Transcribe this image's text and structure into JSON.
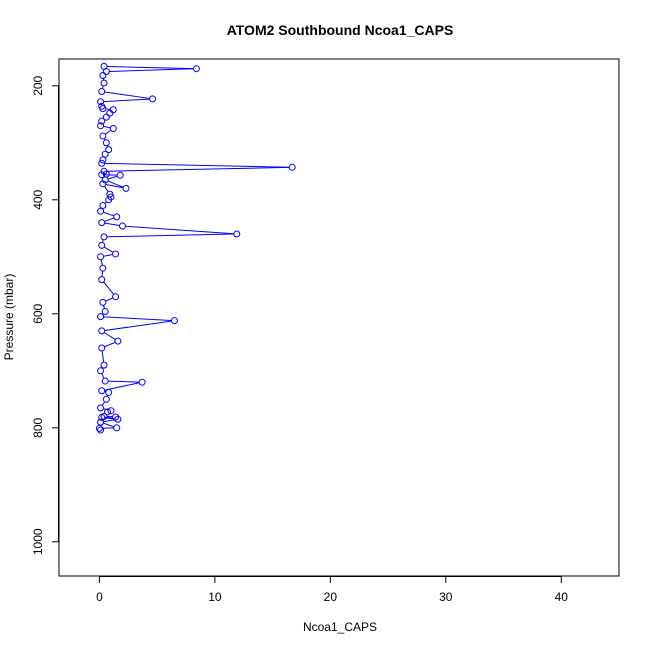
{
  "chart_data": {
    "type": "line",
    "title": "ATOM2 Southbound Ncoa1_CAPS",
    "xlabel": "Ncoa1_CAPS",
    "ylabel": "Pressure (mbar)",
    "xlim": [
      -3.5,
      45
    ],
    "ylim": [
      1060,
      153
    ],
    "y_reversed": true,
    "x_ticks": [
      0,
      10,
      20,
      30,
      40
    ],
    "y_ticks": [
      200,
      400,
      600,
      800,
      1000
    ],
    "grid": false,
    "legend": "none",
    "series_color": "#0000ff",
    "series": [
      {
        "x": [
          0.4,
          8.4,
          0.6,
          0.3,
          0.4,
          0.2,
          4.6,
          0.1,
          0.2,
          0.3,
          1.2,
          0.9,
          0.6,
          0.2,
          0.1,
          1.2,
          0.3,
          0.6,
          0.8,
          0.5,
          0.3,
          0.2,
          16.7,
          0.4,
          0.6,
          0.2,
          1.8,
          0.5,
          2.3,
          0.3,
          0.9,
          1.0,
          0.8,
          0.3,
          0.1,
          1.5,
          0.2,
          2.0,
          11.9,
          0.4,
          0.2,
          1.4,
          0.1,
          0.3,
          0.2,
          1.4,
          0.3,
          0.5,
          0.1,
          6.5,
          0.2,
          1.6,
          0.2,
          0.4,
          0.1,
          0.5,
          3.7,
          0.2,
          0.8,
          0.6,
          0.1,
          1.0,
          0.7,
          0.4,
          1.4,
          0.2,
          1.6,
          0.1,
          1.5,
          0.0,
          0.1
        ],
        "y": [
          166,
          170,
          175,
          182,
          195,
          210,
          223,
          228,
          236,
          240,
          242,
          248,
          255,
          262,
          270,
          275,
          288,
          300,
          312,
          320,
          330,
          336,
          343,
          350,
          355,
          356,
          357,
          365,
          380,
          372,
          390,
          395,
          400,
          410,
          420,
          430,
          440,
          446,
          460,
          465,
          480,
          495,
          500,
          520,
          540,
          570,
          580,
          596,
          605,
          612,
          630,
          648,
          660,
          690,
          700,
          718,
          720,
          735,
          738,
          750,
          765,
          770,
          772,
          780,
          781,
          782,
          785,
          790,
          800,
          801,
          804
        ]
      }
    ]
  }
}
